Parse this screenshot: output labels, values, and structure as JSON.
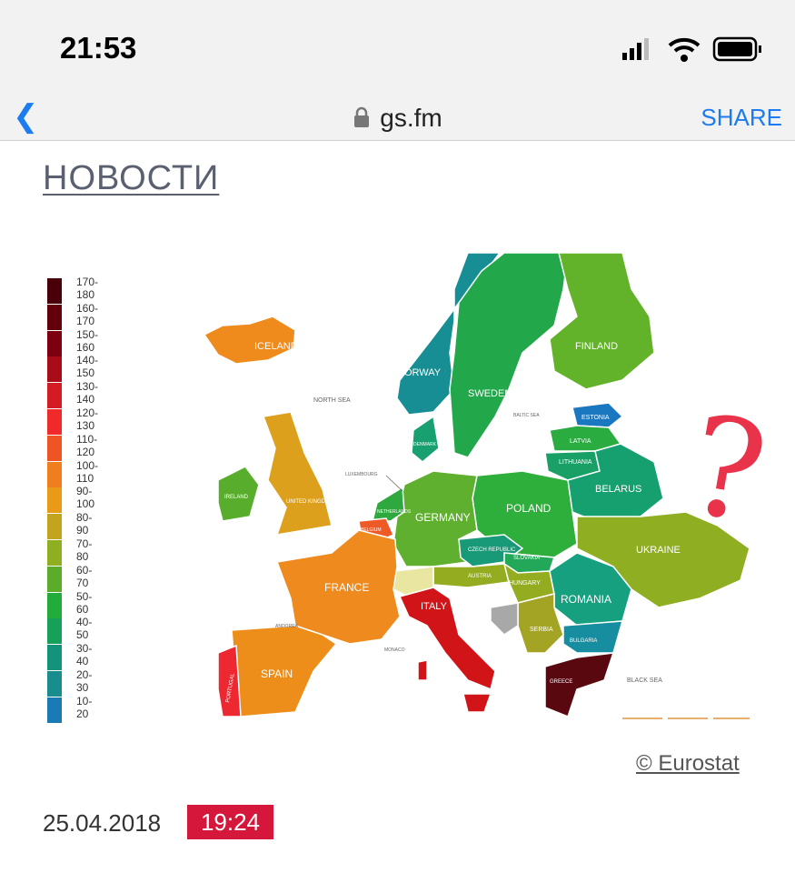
{
  "status_bar": {
    "time": "21:53",
    "icons": [
      "signal-icon",
      "wifi-icon",
      "battery-icon"
    ]
  },
  "browser": {
    "back_icon": "chevron-left-icon",
    "lock_icon": "lock-icon",
    "url": "gs.fm",
    "share_label": "SHARE",
    "accent": "#1a7cf0"
  },
  "article": {
    "section": "НОВОСТИ",
    "credit": "© Eurostat",
    "date": "25.04.2018",
    "time": "19:24",
    "time_badge_color": "#d6173c",
    "annotation": "?"
  },
  "legend": [
    {
      "label": "170-180",
      "color": "#4a0008"
    },
    {
      "label": "160-170",
      "color": "#62000c"
    },
    {
      "label": "150-160",
      "color": "#7d0010"
    },
    {
      "label": "140-150",
      "color": "#a80c18"
    },
    {
      "label": "130-140",
      "color": "#d41a22"
    },
    {
      "label": "120-130",
      "color": "#f02a2a"
    },
    {
      "label": "110-120",
      "color": "#ee5424"
    },
    {
      "label": "100-110",
      "color": "#ef7f1e"
    },
    {
      "label": "90-100",
      "color": "#e99a16"
    },
    {
      "label": "80-90",
      "color": "#c4a41e"
    },
    {
      "label": "70-80",
      "color": "#8fae22"
    },
    {
      "label": "60-70",
      "color": "#5cac2c"
    },
    {
      "label": "50-60",
      "color": "#22ad3a"
    },
    {
      "label": "40-50",
      "color": "#16a05a"
    },
    {
      "label": "30-40",
      "color": "#15927a"
    },
    {
      "label": "20-30",
      "color": "#198c8e"
    },
    {
      "label": "10-20",
      "color": "#1a7ab4"
    }
  ],
  "map": {
    "seas": {
      "north": "NORTH SEA",
      "baltic": "BALTIC SEA",
      "black": "BLACK SEA"
    },
    "countries": {
      "iceland": {
        "label": "ICELAND",
        "color": "#ef8a1c"
      },
      "norway": {
        "label": "NORWAY",
        "color": "#168e94"
      },
      "sweden": {
        "label": "SWEDEN",
        "color": "#22a84a"
      },
      "finland": {
        "label": "FINLAND",
        "color": "#62b22a"
      },
      "estonia": {
        "label": "ESTONIA",
        "color": "#1a78c0"
      },
      "latvia": {
        "label": "LATVIA",
        "color": "#2aac40"
      },
      "lithuania": {
        "label": "LITHUANIA",
        "color": "#18a066"
      },
      "belarus": {
        "label": "BELARUS",
        "color": "#16a070"
      },
      "poland": {
        "label": "POLAND",
        "color": "#2eae3a"
      },
      "germany": {
        "label": "GERMANY",
        "color": "#5eb02e"
      },
      "ukraine": {
        "label": "UKRAINE",
        "color": "#90ae22"
      },
      "czech": {
        "label": "CZECH REPUBLIC",
        "color": "#189a78"
      },
      "slovakia": {
        "label": "SLOVAKIA",
        "color": "#22a858"
      },
      "austria": {
        "label": "AUSTRIA",
        "color": "#94ac20"
      },
      "hungary": {
        "label": "HUNGARY",
        "color": "#94ac20"
      },
      "romania": {
        "label": "ROMANIA",
        "color": "#16a080"
      },
      "france": {
        "label": "FRANCE",
        "color": "#ee8a1e"
      },
      "italy": {
        "label": "ITALY",
        "color": "#d01418"
      },
      "spain": {
        "label": "SPAIN",
        "color": "#ee8e1a"
      },
      "portugal": {
        "label": "PORTUGAL",
        "color": "#ee2830"
      },
      "uk": {
        "label": "UNITED KINGDOM",
        "color": "#dda01c"
      },
      "ireland": {
        "label": "IRELAND",
        "color": "#58ae2c"
      },
      "serbia": {
        "label": "SERBIA",
        "color": "#a4a424"
      },
      "bulgaria": {
        "label": "BULGARIA",
        "color": "#168ea0"
      },
      "greece": {
        "label": "GREECE",
        "color": "#5a0810"
      },
      "belgium": {
        "label": "BELGIUM",
        "color": "#ee5a26"
      },
      "netherlands": {
        "label": "NETHERLANDS",
        "color": "#30a840"
      },
      "denmark": {
        "label": "DENMARK",
        "color": "#18a070"
      },
      "switzerland": {
        "label": "",
        "color": "#e8e6a0"
      },
      "bosnia": {
        "label": "",
        "color": "#a8a8a8"
      },
      "luxembourg": {
        "label": "LUXEMBOURG"
      },
      "andorra": {
        "label": "ANDORRA"
      },
      "monaco": {
        "label": "MONACO"
      }
    }
  }
}
